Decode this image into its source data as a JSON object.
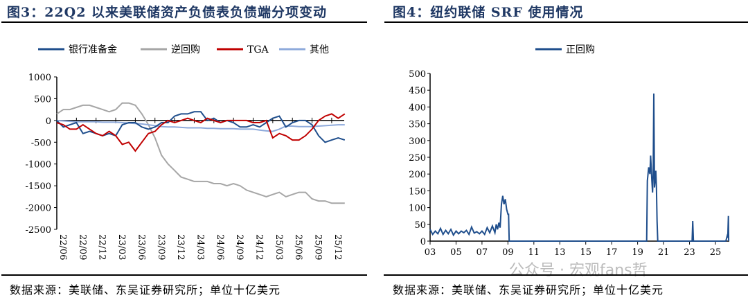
{
  "left": {
    "title": "图3：22Q2 以来美联储资产负债表负债端分项变动",
    "source": "数据来源：美联储、东吴证券研究所；单位十亿美元"
  },
  "right": {
    "title": "图4：纽约联储 SRF 使用情况",
    "source": "数据来源：美联储、东吴证券研究所；单位十亿美元"
  },
  "watermark": "公众号 · 宏观fans哲",
  "chart_data": [
    {
      "type": "line",
      "ylim": [
        -2500,
        1000
      ],
      "yticks": [
        "1000",
        "500",
        "0",
        "-500",
        "-1000",
        "-1500",
        "-2000",
        "-2500"
      ],
      "xticks": [
        "22/06",
        "22/09",
        "22/12",
        "23/03",
        "23/06",
        "23/09",
        "23/12",
        "24/03",
        "24/06",
        "24/09",
        "24/12",
        "25/03",
        "25/06",
        "25/09",
        "25/12"
      ],
      "legend": "top",
      "x": [
        "22/06",
        "22/07",
        "22/08",
        "22/09",
        "22/10",
        "22/11",
        "22/12",
        "23/01",
        "23/02",
        "23/03",
        "23/04",
        "23/05",
        "23/06",
        "23/07",
        "23/08",
        "23/09",
        "23/10",
        "23/11",
        "23/12",
        "24/01",
        "24/02",
        "24/03",
        "24/04",
        "24/05",
        "24/06",
        "24/07",
        "24/08",
        "24/09",
        "24/10",
        "24/11",
        "24/12",
        "25/01",
        "25/02",
        "25/03",
        "25/04",
        "25/05",
        "25/06",
        "25/07",
        "25/08",
        "25/09",
        "25/10",
        "25/11",
        "25/12",
        "26/01",
        "26/02"
      ],
      "series": [
        {
          "name": "银行准备金",
          "color": "#1f4e8c",
          "values": [
            0,
            -150,
            -100,
            -50,
            -300,
            -250,
            -300,
            -350,
            -300,
            -350,
            -100,
            -50,
            -50,
            -150,
            -200,
            -150,
            -50,
            -50,
            100,
            150,
            150,
            200,
            200,
            0,
            50,
            -50,
            0,
            -50,
            -150,
            -150,
            -100,
            -150,
            -50,
            50,
            100,
            -150,
            -50,
            0,
            0,
            -100,
            -350,
            -500,
            -450,
            -400,
            -450
          ]
        },
        {
          "name": "逆回购",
          "color": "#a6a6a6",
          "values": [
            150,
            250,
            250,
            300,
            350,
            350,
            300,
            250,
            200,
            250,
            400,
            400,
            350,
            150,
            -100,
            -400,
            -800,
            -1000,
            -1150,
            -1300,
            -1350,
            -1400,
            -1400,
            -1400,
            -1450,
            -1450,
            -1500,
            -1450,
            -1500,
            -1600,
            -1650,
            -1700,
            -1750,
            -1700,
            -1650,
            -1750,
            -1700,
            -1650,
            -1650,
            -1800,
            -1850,
            -1850,
            -1900,
            -1900,
            -1900
          ]
        },
        {
          "name": "TGA",
          "color": "#c00000",
          "values": [
            -50,
            -100,
            -200,
            -200,
            -100,
            -200,
            -300,
            -350,
            -250,
            -350,
            -550,
            -500,
            -700,
            -500,
            -300,
            -250,
            -100,
            0,
            -50,
            0,
            50,
            0,
            -50,
            50,
            0,
            -50,
            0,
            0,
            0,
            0,
            -50,
            -50,
            0,
            -400,
            -300,
            -350,
            -450,
            -450,
            -350,
            -200,
            0,
            100,
            150,
            50,
            150
          ]
        },
        {
          "name": "其他",
          "color": "#8eaadb",
          "values": [
            0,
            -10,
            -20,
            -30,
            -30,
            -30,
            -30,
            -40,
            -40,
            -40,
            -50,
            -60,
            -70,
            -80,
            -100,
            -120,
            -140,
            -150,
            -150,
            -160,
            -170,
            -170,
            -170,
            -180,
            -180,
            -190,
            -190,
            -190,
            -200,
            -200,
            -200,
            -220,
            -240,
            -250,
            -200,
            -130,
            -130,
            -140,
            -140,
            -140,
            -130,
            -120,
            -110,
            -100,
            -100
          ]
        }
      ]
    },
    {
      "type": "line",
      "ylim": [
        0,
        500
      ],
      "xlim": [
        2003,
        2026
      ],
      "yticks": [
        "500",
        "450",
        "400",
        "350",
        "300",
        "250",
        "200",
        "150",
        "100",
        "50",
        "0"
      ],
      "xticks": [
        "03",
        "05",
        "07",
        "09",
        "11",
        "13",
        "15",
        "17",
        "19",
        "21",
        "23",
        "25"
      ],
      "legend": "top",
      "series": [
        {
          "name": "正回购",
          "color": "#1f4e8c",
          "points": [
            [
              2003.0,
              35
            ],
            [
              2003.2,
              20
            ],
            [
              2003.4,
              30
            ],
            [
              2003.6,
              22
            ],
            [
              2003.8,
              38
            ],
            [
              2004.0,
              20
            ],
            [
              2004.2,
              32
            ],
            [
              2004.4,
              22
            ],
            [
              2004.6,
              35
            ],
            [
              2004.8,
              18
            ],
            [
              2005.0,
              30
            ],
            [
              2005.2,
              22
            ],
            [
              2005.4,
              30
            ],
            [
              2005.6,
              25
            ],
            [
              2005.8,
              32
            ],
            [
              2006.0,
              20
            ],
            [
              2006.2,
              42
            ],
            [
              2006.4,
              24
            ],
            [
              2006.6,
              28
            ],
            [
              2006.8,
              22
            ],
            [
              2007.0,
              30
            ],
            [
              2007.2,
              20
            ],
            [
              2007.4,
              40
            ],
            [
              2007.6,
              25
            ],
            [
              2007.8,
              45
            ],
            [
              2008.0,
              25
            ],
            [
              2008.1,
              50
            ],
            [
              2008.2,
              35
            ],
            [
              2008.3,
              55
            ],
            [
              2008.4,
              40
            ],
            [
              2008.5,
              110
            ],
            [
              2008.6,
              135
            ],
            [
              2008.7,
              110
            ],
            [
              2008.8,
              125
            ],
            [
              2008.9,
              95
            ],
            [
              2009.0,
              80
            ],
            [
              2009.05,
              80
            ],
            [
              2009.1,
              0
            ],
            [
              2019.7,
              0
            ],
            [
              2019.75,
              180
            ],
            [
              2019.85,
              220
            ],
            [
              2019.95,
              200
            ],
            [
              2020.0,
              255
            ],
            [
              2020.1,
              180
            ],
            [
              2020.15,
              145
            ],
            [
              2020.2,
              200
            ],
            [
              2020.25,
              440
            ],
            [
              2020.3,
              160
            ],
            [
              2020.4,
              210
            ],
            [
              2020.45,
              160
            ],
            [
              2020.5,
              60
            ],
            [
              2020.55,
              0
            ],
            [
              2023.2,
              0
            ],
            [
              2023.25,
              60
            ],
            [
              2023.3,
              0
            ],
            [
              2025.8,
              0
            ],
            [
              2025.9,
              15
            ],
            [
              2025.95,
              10
            ],
            [
              2026.0,
              75
            ],
            [
              2026.02,
              0
            ]
          ]
        }
      ]
    }
  ]
}
